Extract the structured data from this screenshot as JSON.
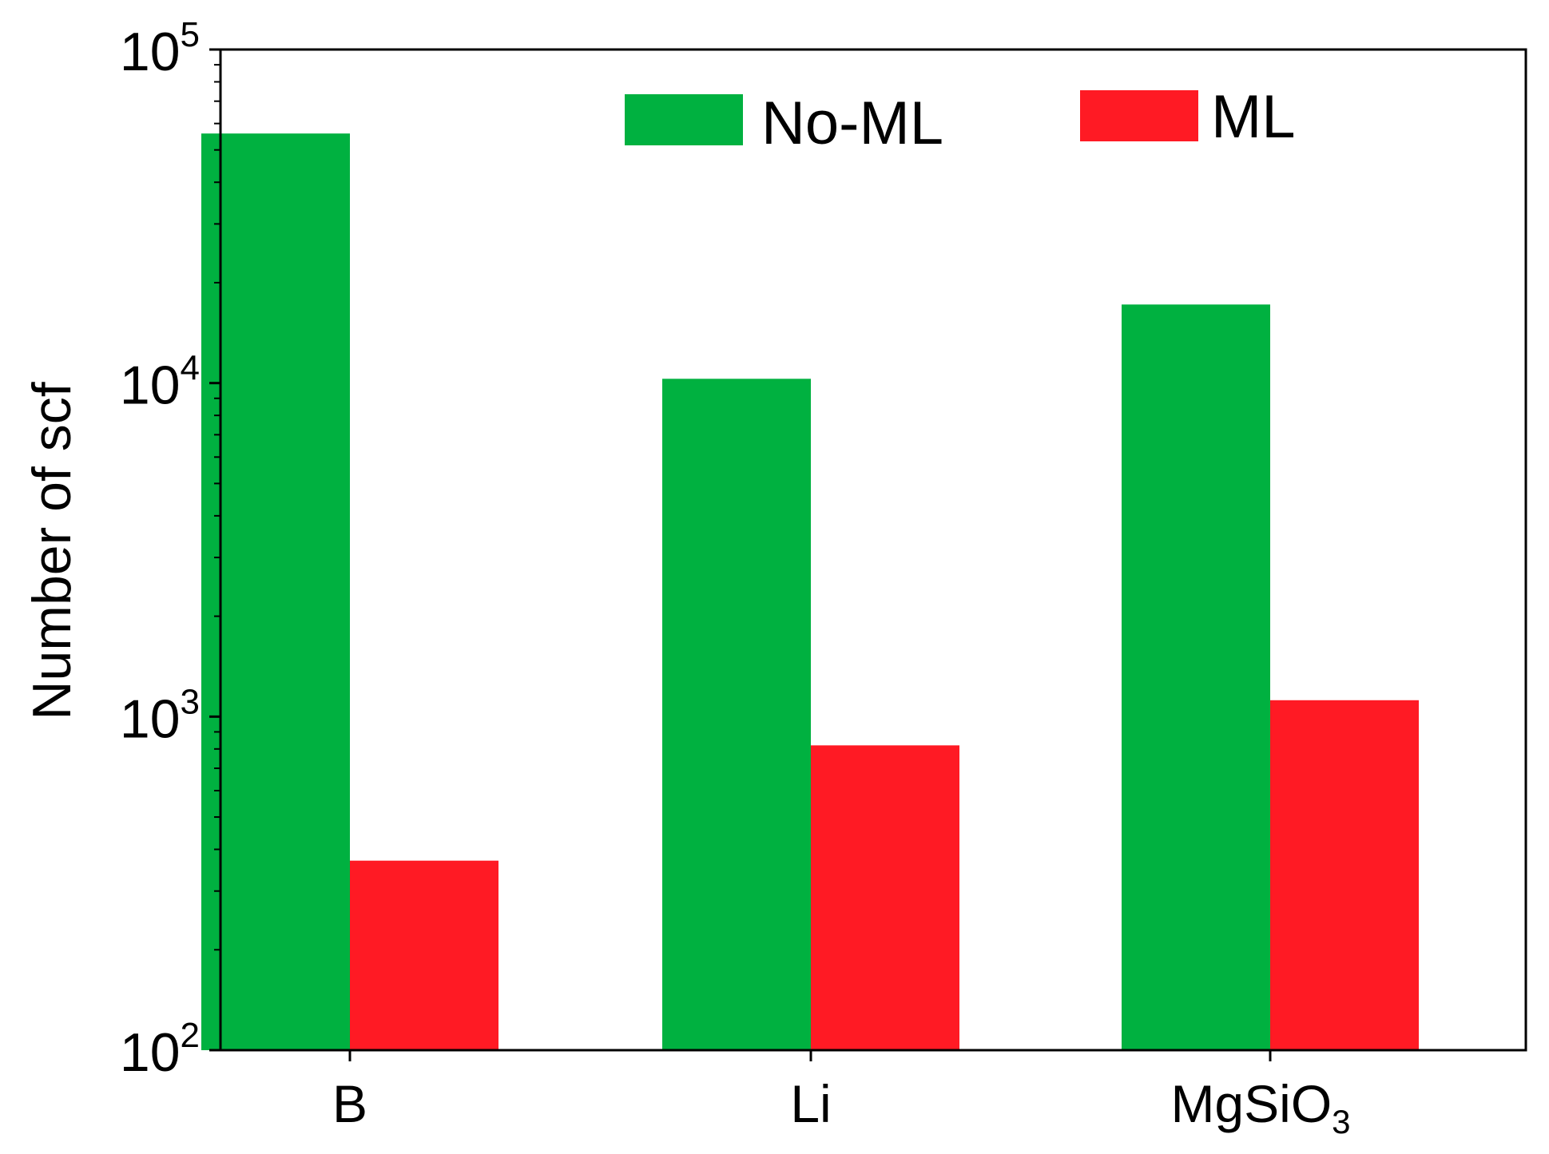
{
  "chart_data": {
    "type": "bar",
    "title": "",
    "xlabel": "",
    "ylabel": "Number of scf",
    "yscale": "log",
    "ylim": [
      100,
      100000
    ],
    "yticks": [
      {
        "value": 100,
        "base": "10",
        "exp": "2"
      },
      {
        "value": 1000,
        "base": "10",
        "exp": "3"
      },
      {
        "value": 10000,
        "base": "10",
        "exp": "4"
      },
      {
        "value": 100000,
        "base": "10",
        "exp": "5"
      }
    ],
    "categories": [
      {
        "label": "B",
        "sub": ""
      },
      {
        "label": "Li",
        "sub": ""
      },
      {
        "label": "MgSiO",
        "sub": "3"
      }
    ],
    "series": [
      {
        "name": "No-ML",
        "color": "#00b140",
        "values": [
          56000,
          10300,
          17200
        ]
      },
      {
        "name": "ML",
        "color": "#ff1a24",
        "values": [
          370,
          820,
          1120
        ]
      }
    ],
    "legend": "top-right",
    "grid": false
  }
}
